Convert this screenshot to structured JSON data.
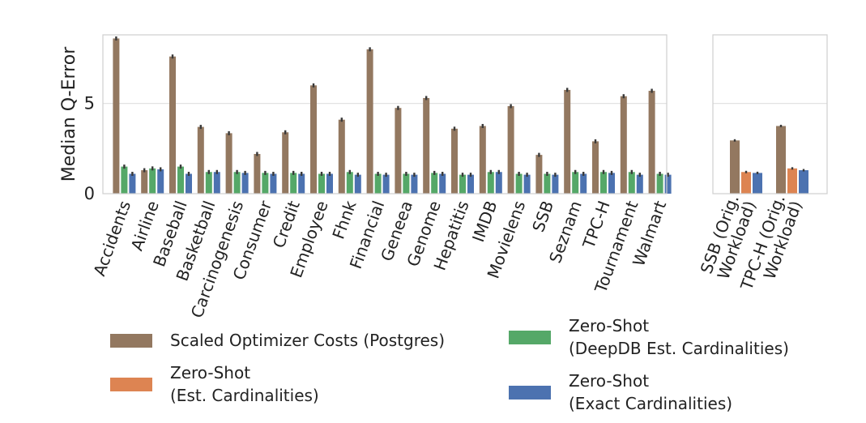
{
  "chart_data": [
    {
      "type": "bar",
      "panel": "left",
      "ylabel": "Median Q-Error",
      "ylim": [
        0,
        8.8
      ],
      "yticks": [
        0,
        5
      ],
      "grid": "horizontal",
      "categories": [
        "Accidents",
        "Airline",
        "Baseball",
        "Basketball",
        "Carcinogenesis",
        "Consumer",
        "Credit",
        "Employee",
        "Fhnk",
        "Financial",
        "Geneea",
        "Genome",
        "Hepatitis",
        "IMDB",
        "Movielens",
        "SSB",
        "Seznam",
        "TPC-H",
        "Tournament",
        "Walmart"
      ],
      "series": [
        {
          "name": "Scaled Optimizer Costs (Postgres)",
          "color": "#937860",
          "values": [
            8.6,
            1.3,
            7.6,
            3.7,
            3.35,
            2.2,
            3.4,
            6.0,
            4.1,
            8.0,
            4.75,
            5.3,
            3.6,
            3.75,
            4.85,
            2.15,
            5.75,
            2.9,
            5.4,
            5.7
          ]
        },
        {
          "name": "Zero-Shot (DeepDB Est. Cardinalities)",
          "color": "#55a868",
          "values": [
            1.5,
            1.4,
            1.5,
            1.2,
            1.2,
            1.15,
            1.15,
            1.1,
            1.2,
            1.1,
            1.1,
            1.15,
            1.05,
            1.2,
            1.1,
            1.1,
            1.2,
            1.2,
            1.2,
            1.1
          ]
        },
        {
          "name": "Zero-Shot (Exact Cardinalities)",
          "color": "#4c72b0",
          "values": [
            1.1,
            1.35,
            1.1,
            1.2,
            1.15,
            1.1,
            1.1,
            1.1,
            1.05,
            1.05,
            1.05,
            1.1,
            1.05,
            1.2,
            1.05,
            1.05,
            1.1,
            1.15,
            1.05,
            1.05
          ]
        }
      ]
    },
    {
      "type": "bar",
      "panel": "right",
      "ylim": [
        0,
        8.8
      ],
      "grid": "horizontal",
      "categories": [
        "SSB (Orig.\nWorkload)",
        "TPC-H (Orig.\nWorkload)"
      ],
      "series": [
        {
          "name": "Scaled Optimizer Costs (Postgres)",
          "color": "#937860",
          "values": [
            2.95,
            3.75
          ]
        },
        {
          "name": "Zero-Shot (Est. Cardinalities)",
          "color": "#dd8452",
          "values": [
            1.2,
            1.4
          ]
        },
        {
          "name": "Zero-Shot (Exact Cardinalities)",
          "color": "#4c72b0",
          "values": [
            1.15,
            1.3
          ]
        }
      ]
    }
  ],
  "legend": [
    {
      "label": "Scaled Optimizer Costs (Postgres)",
      "color": "#937860"
    },
    {
      "label": "Zero-Shot\n(DeepDB Est. Cardinalities)",
      "color": "#55a868"
    },
    {
      "label": "Zero-Shot\n(Est. Cardinalities)",
      "color": "#dd8452"
    },
    {
      "label": "Zero-Shot\n(Exact Cardinalities)",
      "color": "#4c72b0"
    }
  ]
}
